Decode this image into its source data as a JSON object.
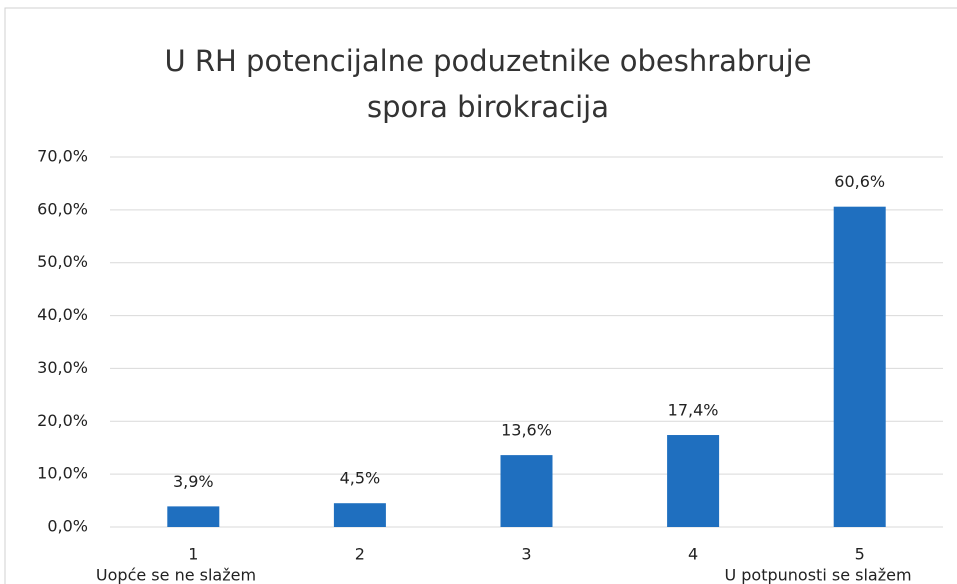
{
  "chart_data": {
    "type": "bar",
    "title": "U RH potencijalne poduzetnike obeshrabruje spora birokracija",
    "categories": [
      "1",
      "2",
      "3",
      "4",
      "5"
    ],
    "values": [
      3.9,
      4.5,
      13.6,
      17.4,
      60.6
    ],
    "value_labels": [
      "3,9%",
      "4,5%",
      "13,6%",
      "17,4%",
      "60,6%"
    ],
    "color": "#1f6fbf",
    "ylim": [
      0,
      70
    ],
    "yticks": [
      {
        "value": 0,
        "label": "0,0%"
      },
      {
        "value": 10,
        "label": "10,0%"
      },
      {
        "value": 20,
        "label": "20,0%"
      },
      {
        "value": 30,
        "label": "30,0%"
      },
      {
        "value": 40,
        "label": "40,0%"
      },
      {
        "value": 50,
        "label": "50,0%"
      },
      {
        "value": 60,
        "label": "60,0%"
      },
      {
        "value": 70,
        "label": "70,0%"
      }
    ],
    "grid": true,
    "annotations": [
      "Uopće se ne slažem",
      "U potpunosti se slažem"
    ]
  }
}
